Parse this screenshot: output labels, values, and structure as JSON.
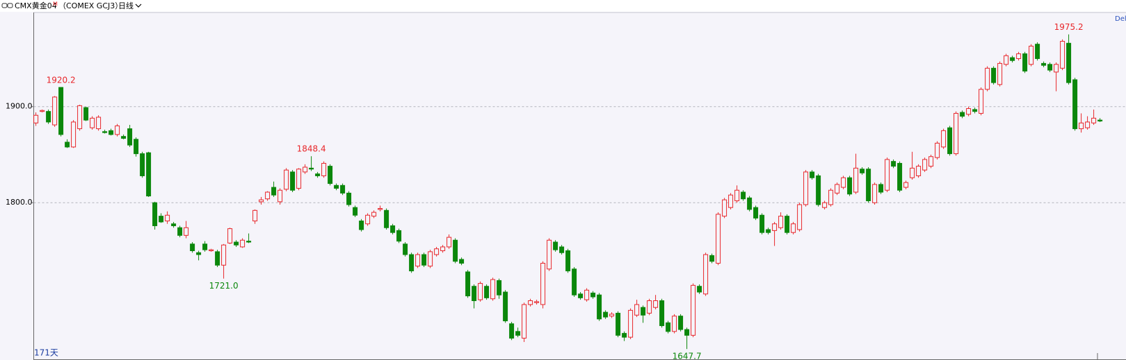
{
  "header": {
    "symbol": "CMX黄金04",
    "badge": "M",
    "code": "（COMEX GCJ3）",
    "period": "日线",
    "extra": "Del"
  },
  "footer": {
    "days": "171天"
  },
  "chart_data": {
    "type": "candlestick",
    "up_color": "#e8262a",
    "down_color": "#0b870b",
    "ylim": [
      1637,
      1998
    ],
    "yticks": [
      {
        "value": 1800,
        "label": "1800.0"
      },
      {
        "value": 1900,
        "label": "1900.0"
      }
    ],
    "grid": true,
    "open": [
      1883,
      1895,
      1895,
      1881,
      1920,
      1863,
      1858,
      1877,
      1899,
      1878,
      1877,
      1874,
      1875,
      1871,
      1869,
      1877,
      1866,
      1851,
      1852,
      1800,
      1786,
      1781,
      1778,
      1774,
      1766,
      1757,
      1748,
      1757,
      1750,
      1749,
      1735,
      1758,
      1759,
      1754,
      1760,
      1781,
      1801,
      1804,
      1816,
      1801,
      1814,
      1832,
      1815,
      1832,
      1836,
      1830,
      1828,
      1838,
      1818,
      1818,
      1810,
      1795,
      1781,
      1778,
      1786,
      1793,
      1792,
      1776,
      1771,
      1757,
      1746,
      1734,
      1746,
      1734,
      1746,
      1750,
      1754,
      1761,
      1741,
      1728,
      1713,
      1699,
      1713,
      1700,
      1719,
      1707,
      1674,
      1666,
      1659,
      1694,
      1696,
      1694,
      1731,
      1759,
      1754,
      1750,
      1731,
      1705,
      1699,
      1706,
      1704,
      1686,
      1682,
      1685,
      1664,
      1660,
      1683,
      1691,
      1685,
      1691,
      1698,
      1675,
      1666,
      1682,
      1668,
      1662,
      1713,
      1705,
      1745,
      1737,
      1786,
      1795,
      1802,
      1811,
      1805,
      1795,
      1787,
      1772,
      1771,
      1774,
      1786,
      1769,
      1772,
      1798,
      1832,
      1828,
      1795,
      1798,
      1810,
      1816,
      1826,
      1811,
      1835,
      1835,
      1800,
      1819,
      1813,
      1843,
      1841,
      1816,
      1826,
      1828,
      1834,
      1838,
      1847,
      1858,
      1878,
      1851,
      1894,
      1892,
      1897,
      1893,
      1918,
      1940,
      1923,
      1944,
      1951,
      1950,
      1955,
      1944,
      1965,
      1945,
      1944,
      1936,
      1940,
      1966,
      1928,
      1877,
      1878,
      1883,
      1886
    ],
    "high": [
      1894,
      1897,
      1897,
      1911,
      1920.2,
      1866,
      1886,
      1902,
      1900,
      1890,
      1891,
      1876,
      1877,
      1882,
      1871,
      1881,
      1868,
      1853,
      1853,
      1801,
      1789,
      1791,
      1780,
      1776,
      1781,
      1759,
      1750,
      1760,
      1752,
      1751,
      1757,
      1774,
      1761,
      1763,
      1768,
      1793,
      1806,
      1812,
      1822,
      1815,
      1836,
      1834,
      1836,
      1840,
      1848.4,
      1832,
      1843,
      1840,
      1820,
      1820,
      1812,
      1797,
      1783,
      1789,
      1792,
      1797,
      1794,
      1778,
      1773,
      1759,
      1748,
      1748,
      1748,
      1751,
      1754,
      1756,
      1767,
      1763,
      1743,
      1730,
      1715,
      1718,
      1715,
      1722,
      1721,
      1709,
      1676,
      1670,
      1696,
      1700,
      1699,
      1739,
      1763,
      1761,
      1756,
      1752,
      1733,
      1707,
      1711,
      1708,
      1706,
      1688,
      1686,
      1687,
      1666,
      1690,
      1699,
      1693,
      1700,
      1704,
      1700,
      1677,
      1684,
      1684,
      1670,
      1716,
      1715,
      1748,
      1747,
      1790,
      1805,
      1810,
      1818,
      1813,
      1807,
      1797,
      1789,
      1774,
      1780,
      1790,
      1788,
      1780,
      1800,
      1834,
      1834,
      1830,
      1802,
      1815,
      1821,
      1828,
      1828,
      1851,
      1837,
      1837,
      1821,
      1821,
      1847,
      1845,
      1843,
      1823,
      1853,
      1840,
      1847,
      1850,
      1864,
      1877,
      1880,
      1895,
      1896,
      1900,
      1899,
      1920,
      1942,
      1942,
      1947,
      1955,
      1953,
      1957,
      1957,
      1965,
      1967,
      1947,
      1946,
      1946,
      1970,
      1975.2,
      1930,
      1893,
      1890,
      1897,
      1888
    ],
    "low": [
      1880,
      1894,
      1882,
      1879,
      1869,
      1857,
      1857,
      1875,
      1885,
      1876,
      1875,
      1872,
      1870,
      1869,
      1866,
      1858,
      1848,
      1826,
      1806,
      1772,
      1779,
      1778,
      1774,
      1764,
      1763,
      1748,
      1740,
      1749,
      1749,
      1733,
      1721,
      1757,
      1754,
      1753,
      1758,
      1778,
      1798,
      1802,
      1806,
      1798,
      1812,
      1811,
      1813,
      1830,
      1833,
      1826,
      1826,
      1818,
      1813,
      1808,
      1796,
      1785,
      1770,
      1776,
      1784,
      1791,
      1772,
      1767,
      1758,
      1744,
      1727,
      1732,
      1733,
      1732,
      1744,
      1748,
      1752,
      1737,
      1735,
      1701,
      1690,
      1697,
      1699,
      1698,
      1700,
      1675,
      1657,
      1660,
      1655,
      1692,
      1694,
      1690,
      1729,
      1749,
      1746,
      1727,
      1702,
      1699,
      1697,
      1700,
      1677,
      1679,
      1680,
      1660,
      1656,
      1658,
      1681,
      1675,
      1683,
      1689,
      1670,
      1664,
      1664,
      1666,
      1647.7,
      1660,
      1705,
      1703,
      1737,
      1735,
      1784,
      1793,
      1800,
      1802,
      1791,
      1782,
      1767,
      1767,
      1755,
      1772,
      1767,
      1767,
      1770,
      1796,
      1824,
      1796,
      1793,
      1796,
      1808,
      1814,
      1807,
      1809,
      1829,
      1800,
      1798,
      1809,
      1811,
      1836,
      1811,
      1814,
      1824,
      1826,
      1832,
      1836,
      1845,
      1856,
      1849,
      1849,
      1888,
      1890,
      1893,
      1891,
      1916,
      1923,
      1921,
      1942,
      1946,
      1948,
      1935,
      1942,
      1948,
      1941,
      1936,
      1916,
      1938,
      1923,
      1875,
      1873,
      1876,
      1881,
      1884
    ],
    "close": [
      1891,
      1896,
      1884,
      1910,
      1871,
      1858,
      1884,
      1901,
      1886,
      1888,
      1889,
      1873,
      1871,
      1880,
      1867,
      1860,
      1851,
      1828,
      1807,
      1776,
      1780,
      1787,
      1776,
      1766,
      1774,
      1750,
      1746,
      1751,
      1751,
      1735,
      1756,
      1773,
      1756,
      1761,
      1759,
      1792,
      1803,
      1811,
      1808,
      1813,
      1834,
      1813,
      1835,
      1837,
      1835,
      1828,
      1841,
      1820,
      1815,
      1810,
      1798,
      1787,
      1772,
      1787,
      1790,
      1794,
      1774,
      1769,
      1760,
      1746,
      1729,
      1746,
      1735,
      1749,
      1752,
      1754,
      1764,
      1739,
      1737,
      1703,
      1698,
      1716,
      1701,
      1720,
      1704,
      1677,
      1659,
      1662,
      1694,
      1698,
      1697,
      1737,
      1761,
      1751,
      1748,
      1729,
      1704,
      1701,
      1709,
      1702,
      1679,
      1681,
      1684,
      1662,
      1660,
      1688,
      1694,
      1683,
      1698,
      1698,
      1672,
      1666,
      1682,
      1668,
      1662,
      1714,
      1707,
      1746,
      1739,
      1788,
      1803,
      1808,
      1813,
      1804,
      1793,
      1784,
      1769,
      1769,
      1778,
      1786,
      1769,
      1778,
      1798,
      1832,
      1826,
      1798,
      1800,
      1813,
      1819,
      1826,
      1809,
      1836,
      1831,
      1802,
      1819,
      1811,
      1845,
      1838,
      1813,
      1821,
      1836,
      1838,
      1845,
      1848,
      1862,
      1875,
      1851,
      1893,
      1890,
      1898,
      1895,
      1918,
      1940,
      1925,
      1945,
      1953,
      1948,
      1955,
      1937,
      1963,
      1950,
      1943,
      1938,
      1944,
      1968,
      1925,
      1877,
      1883,
      1884,
      1888,
      1885
    ],
    "high_labels": [
      null,
      null,
      null,
      null,
      "1920.2",
      null,
      null,
      null,
      null,
      null,
      null,
      null,
      null,
      null,
      null,
      null,
      null,
      null,
      null,
      null,
      null,
      null,
      null,
      null,
      null,
      null,
      null,
      null,
      null,
      null,
      null,
      null,
      null,
      null,
      null,
      null,
      null,
      null,
      null,
      null,
      null,
      null,
      null,
      null,
      "1848.4",
      null,
      null,
      null,
      null,
      null,
      null,
      null,
      null,
      null,
      null,
      null,
      null,
      null,
      null,
      null,
      null,
      null,
      null,
      null,
      null,
      null,
      null,
      null,
      null,
      null,
      null,
      null,
      null,
      null,
      null,
      null,
      null,
      null,
      null,
      null,
      null,
      null,
      null,
      null,
      null,
      null,
      null,
      null,
      null,
      null,
      null,
      null,
      null,
      null,
      null,
      null,
      null,
      null,
      null,
      null,
      null,
      null,
      null,
      null,
      null,
      null,
      null,
      null,
      null,
      null,
      null,
      null,
      null,
      null,
      null,
      null,
      null,
      null,
      null,
      null,
      null,
      null,
      null,
      null,
      null,
      null,
      null,
      null,
      null,
      null,
      null,
      null,
      null,
      null,
      null,
      null,
      null,
      null,
      null,
      null,
      null,
      null,
      null,
      null,
      null,
      null,
      null,
      null,
      null,
      null,
      null,
      null,
      null,
      null,
      null,
      null,
      null,
      null,
      null,
      null,
      null,
      null,
      null,
      null,
      null,
      "1975.2",
      null,
      null,
      null,
      null,
      null
    ],
    "low_labels": [
      null,
      null,
      null,
      null,
      null,
      null,
      null,
      null,
      null,
      null,
      null,
      null,
      null,
      null,
      null,
      null,
      null,
      null,
      null,
      null,
      null,
      null,
      null,
      null,
      null,
      null,
      null,
      null,
      null,
      null,
      "1721.0",
      null,
      null,
      null,
      null,
      null,
      null,
      null,
      null,
      null,
      null,
      null,
      null,
      null,
      null,
      null,
      null,
      null,
      null,
      null,
      null,
      null,
      null,
      null,
      null,
      null,
      null,
      null,
      null,
      null,
      null,
      null,
      null,
      null,
      null,
      null,
      null,
      null,
      null,
      null,
      null,
      null,
      null,
      null,
      null,
      null,
      null,
      null,
      null,
      null,
      null,
      null,
      null,
      null,
      null,
      null,
      null,
      null,
      null,
      null,
      null,
      null,
      null,
      null,
      null,
      null,
      null,
      null,
      null,
      null,
      null,
      null,
      null,
      null,
      "1647.7",
      null,
      null,
      null,
      null,
      null,
      null,
      null,
      null,
      null,
      null,
      null,
      null,
      null,
      null,
      null,
      null,
      null,
      null,
      null,
      null,
      null,
      null,
      null,
      null,
      null,
      null,
      null,
      null,
      null,
      null,
      null,
      null,
      null,
      null,
      null,
      null,
      null,
      null,
      null,
      null,
      null,
      null,
      null,
      null,
      null,
      null,
      null,
      null,
      null,
      null,
      null,
      null,
      null,
      null,
      null,
      null,
      null,
      null,
      null,
      null,
      null,
      null,
      null,
      null,
      null,
      null
    ]
  }
}
